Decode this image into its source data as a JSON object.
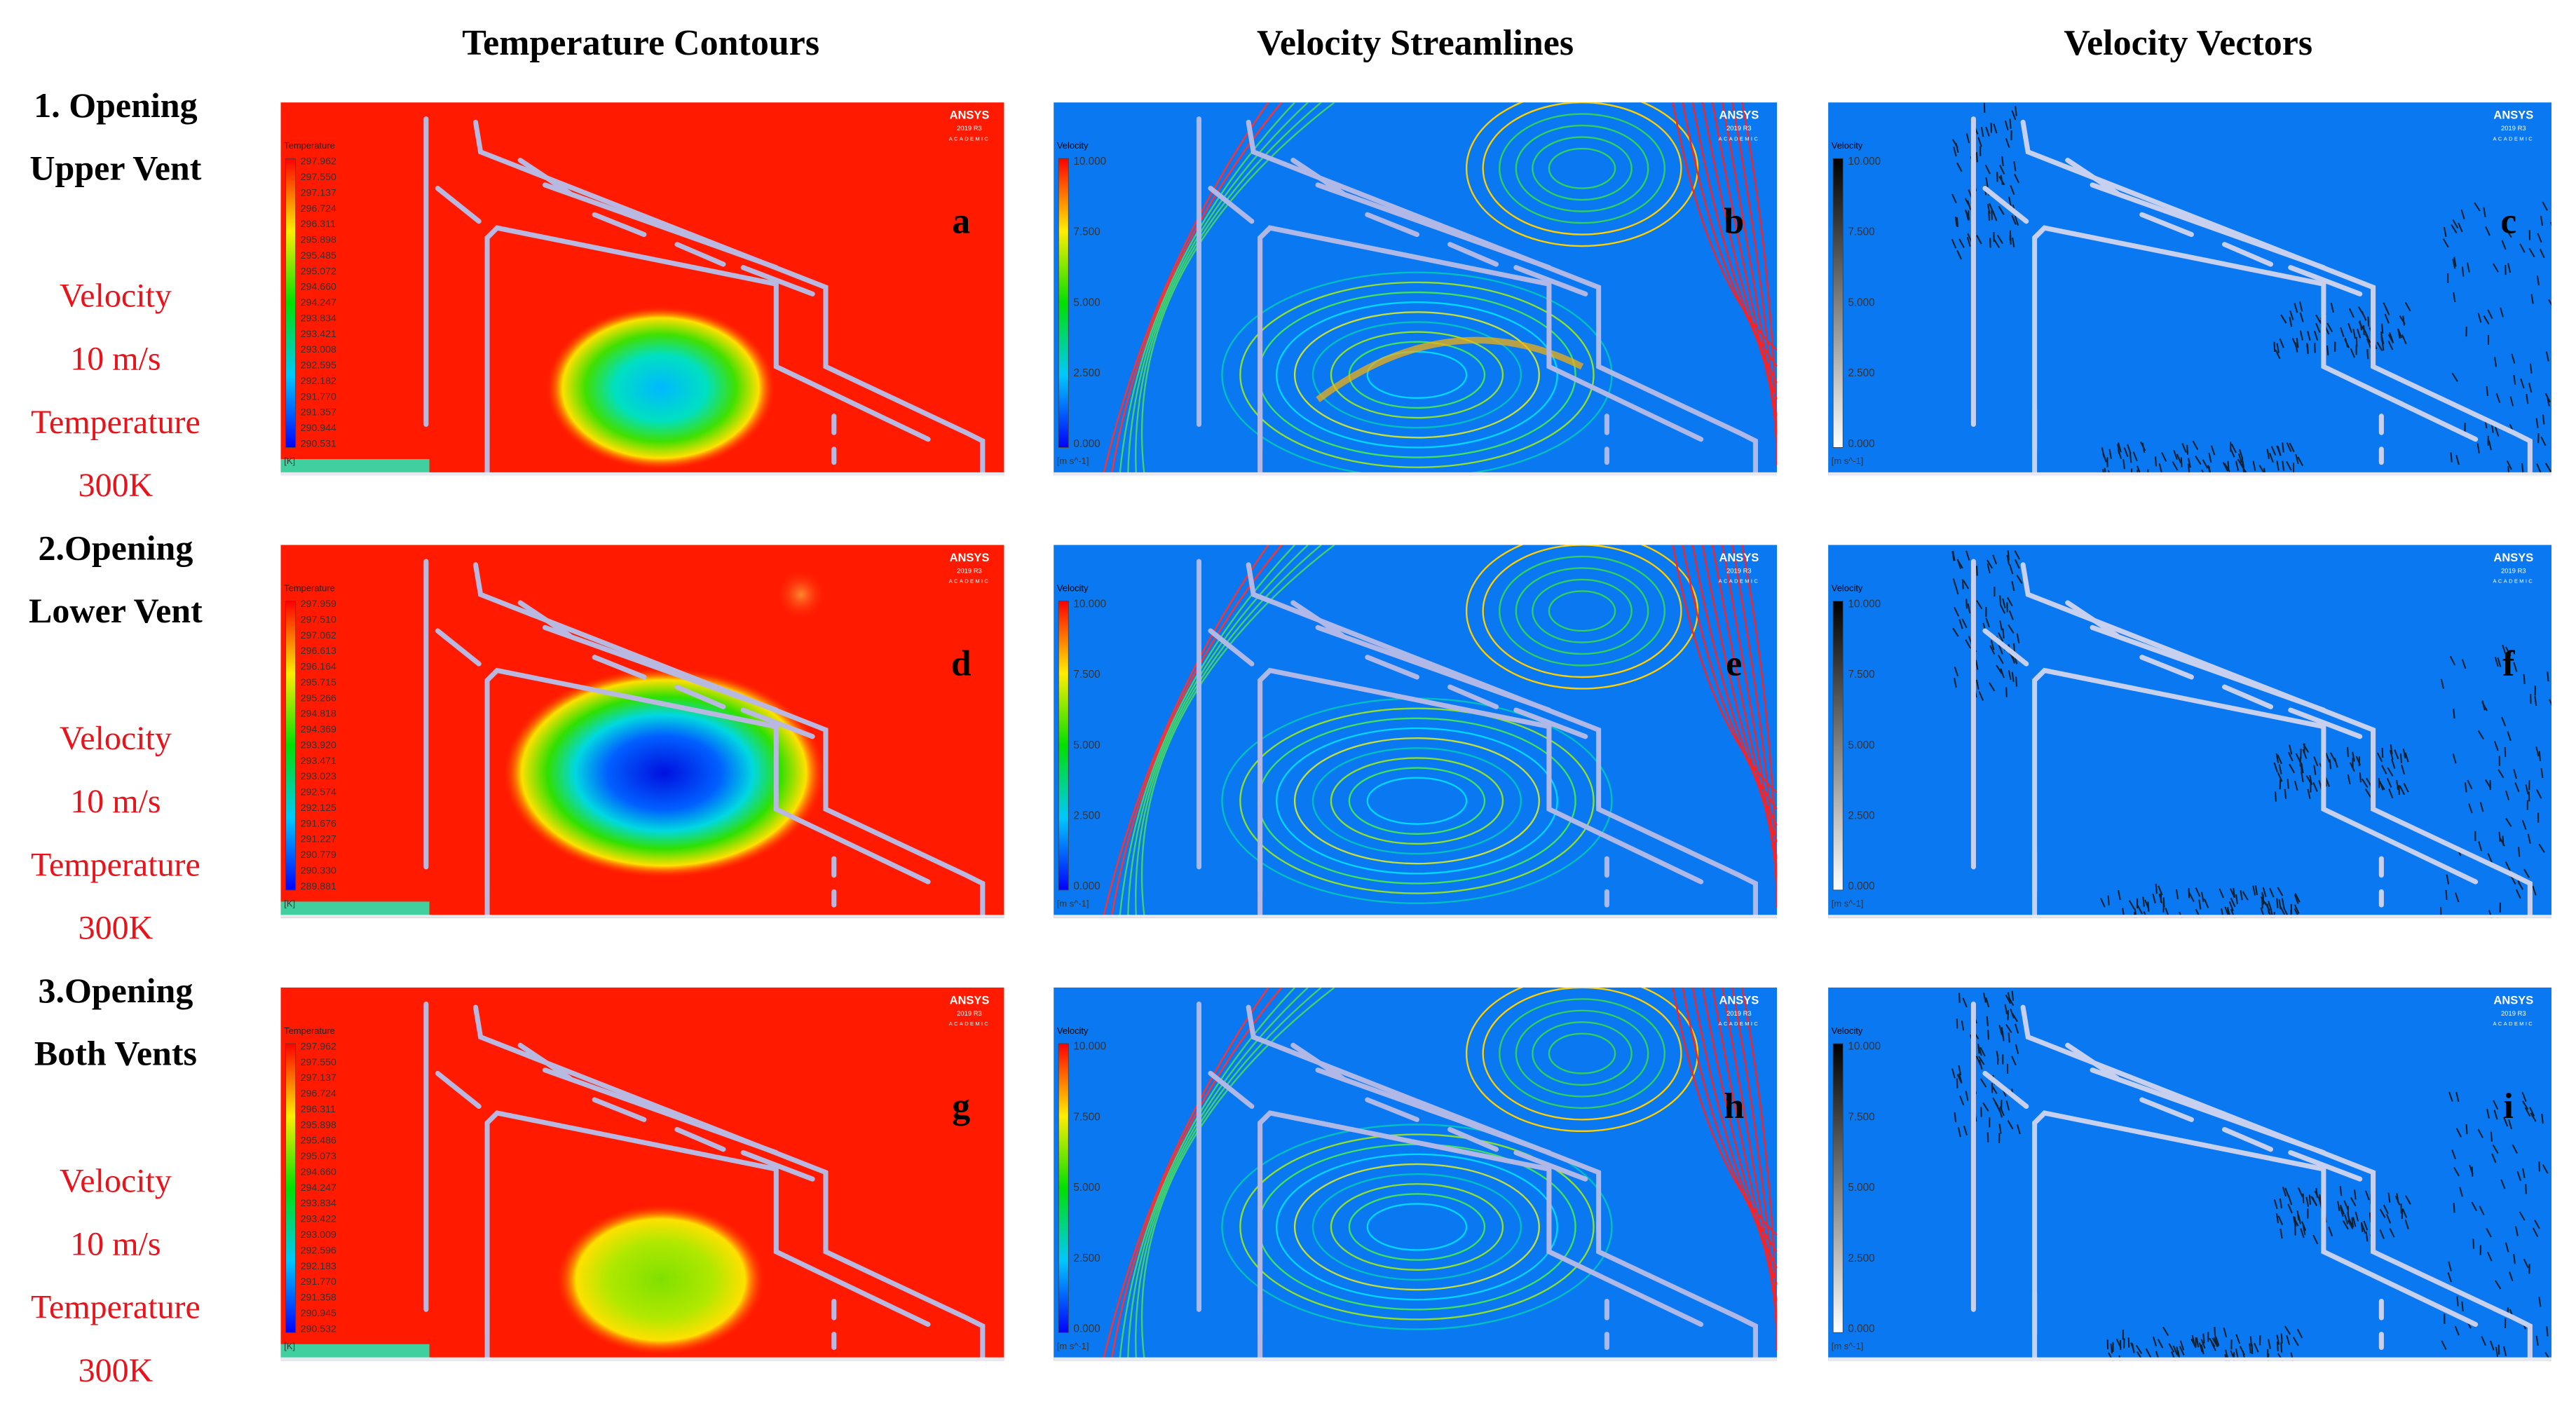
{
  "column_titles": [
    "Temperature Contours",
    "Velocity Streamlines",
    "Velocity Vectors"
  ],
  "branding": {
    "name": "ANSYS",
    "version": "2019 R3",
    "edition": "ACADEMIC"
  },
  "rows": [
    {
      "title": [
        "1. Opening",
        "Upper Vent"
      ],
      "conditions": [
        "Velocity",
        "10 m/s",
        "Temperature",
        "300K"
      ],
      "panels": [
        {
          "letter": "a",
          "legend": {
            "title": "Temperature",
            "unit": "[K]",
            "labels": [
              "297.962",
              "297.550",
              "297.137",
              "296.724",
              "296.311",
              "295.898",
              "295.485",
              "295.072",
              "294.660",
              "294.247",
              "293.834",
              "293.421",
              "293.008",
              "292.595",
              "292.182",
              "291.770",
              "291.357",
              "290.944",
              "290.531"
            ]
          }
        },
        {
          "letter": "b",
          "legend": {
            "title": "Velocity",
            "unit": "[m s^-1]",
            "labels": [
              "10.000",
              "7.500",
              "5.000",
              "2.500",
              "0.000"
            ]
          }
        },
        {
          "letter": "c",
          "legend": {
            "title": "Velocity",
            "unit": "[m s^-1]",
            "labels": [
              "10.000",
              "7.500",
              "5.000",
              "2.500",
              "0.000"
            ]
          }
        }
      ]
    },
    {
      "title": [
        "2.Opening",
        "Lower Vent"
      ],
      "conditions": [
        "Velocity",
        "10 m/s",
        "Temperature",
        "300K"
      ],
      "panels": [
        {
          "letter": "d",
          "legend": {
            "title": "Temperature",
            "unit": "[K]",
            "labels": [
              "297.959",
              "297.510",
              "297.062",
              "296.613",
              "296.164",
              "295.715",
              "295.266",
              "294.818",
              "294.369",
              "293.920",
              "293.471",
              "293.023",
              "292.574",
              "292.125",
              "291.676",
              "291.227",
              "290.779",
              "290.330",
              "289.881"
            ]
          }
        },
        {
          "letter": "e",
          "legend": {
            "title": "Velocity",
            "unit": "[m s^-1]",
            "labels": [
              "10.000",
              "7.500",
              "5.000",
              "2.500",
              "0.000"
            ]
          }
        },
        {
          "letter": "f",
          "legend": {
            "title": "Velocity",
            "unit": "[m s^-1]",
            "labels": [
              "10.000",
              "7.500",
              "5.000",
              "2.500",
              "0.000"
            ]
          }
        }
      ]
    },
    {
      "title": [
        "3.Opening",
        "Both Vents"
      ],
      "conditions": [
        "Velocity",
        "10 m/s",
        "Temperature",
        "300K"
      ],
      "panels": [
        {
          "letter": "g",
          "legend": {
            "title": "Temperature",
            "unit": "[K]",
            "labels": [
              "297.962",
              "297.550",
              "297.137",
              "296.724",
              "296.311",
              "295.898",
              "295.486",
              "295.073",
              "294.660",
              "294.247",
              "293.834",
              "293.422",
              "293.009",
              "292.596",
              "292.183",
              "291.770",
              "291.358",
              "290.945",
              "290.532"
            ]
          }
        },
        {
          "letter": "h",
          "legend": {
            "title": "Velocity",
            "unit": "[m s^-1]",
            "labels": [
              "10.000",
              "7.500",
              "5.000",
              "2.500",
              "0.000"
            ]
          }
        },
        {
          "letter": "i",
          "legend": {
            "title": "Velocity",
            "unit": "[m s^-1]",
            "labels": [
              "10.000",
              "7.500",
              "5.000",
              "2.500",
              "0.000"
            ]
          }
        }
      ]
    }
  ]
}
